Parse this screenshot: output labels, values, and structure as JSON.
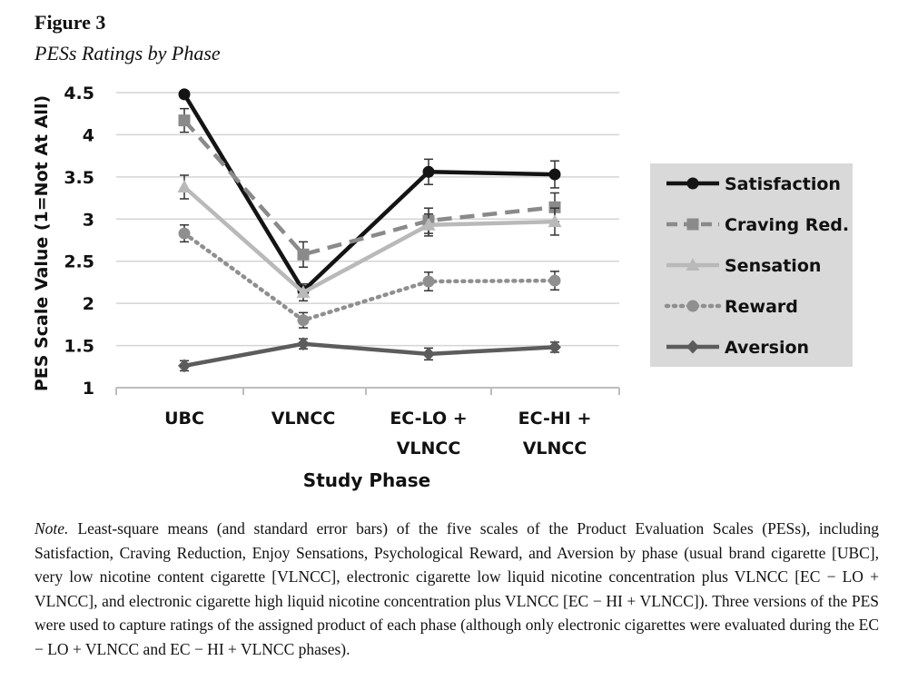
{
  "figure": {
    "label": "Figure 3",
    "subtitle": "PESs Ratings by Phase"
  },
  "chart_data": {
    "type": "line",
    "title": "PESs Ratings by Phase",
    "xlabel": "Study Phase",
    "ylabel": "PES Scale Value (1=Not At All)",
    "ylim": [
      1,
      4.5
    ],
    "yticks": [
      "1",
      "1.5",
      "2",
      "2.5",
      "3",
      "3.5",
      "4",
      "4.5"
    ],
    "grid": true,
    "legend_position": "right",
    "categories": [
      [
        "UBC"
      ],
      [
        "VLNCC"
      ],
      [
        "EC-LO +",
        "VLNCC"
      ],
      [
        "EC-HI +",
        "VLNCC"
      ]
    ],
    "series": [
      {
        "name": "Satisfaction",
        "values": [
          4.48,
          2.15,
          3.56,
          3.53
        ],
        "errors": [
          0.0,
          0.0,
          0.15,
          0.16
        ],
        "color": "#141414",
        "dash": "",
        "marker": "circle",
        "width": 4.5
      },
      {
        "name": "Craving Red.",
        "values": [
          4.17,
          2.58,
          2.98,
          3.14
        ],
        "errors": [
          0.14,
          0.15,
          0.15,
          0.17
        ],
        "color": "#8a8a8a",
        "dash": "16,9",
        "marker": "square",
        "width": 4.5
      },
      {
        "name": "Sensation",
        "values": [
          3.38,
          2.13,
          2.93,
          2.97
        ],
        "errors": [
          0.14,
          0.1,
          0.13,
          0.16
        ],
        "color": "#b9b9b9",
        "dash": "",
        "marker": "triangle",
        "width": 4.5
      },
      {
        "name": "Reward",
        "values": [
          2.83,
          1.8,
          2.26,
          2.27
        ],
        "errors": [
          0.1,
          0.09,
          0.11,
          0.11
        ],
        "color": "#8f8f8f",
        "dash": "2,6",
        "marker": "circle",
        "width": 4.5
      },
      {
        "name": "Aversion",
        "values": [
          1.26,
          1.52,
          1.4,
          1.48
        ],
        "errors": [
          0.06,
          0.06,
          0.07,
          0.06
        ],
        "color": "#5c5c5c",
        "dash": "",
        "marker": "diamond",
        "width": 4.5
      }
    ]
  },
  "note": {
    "label": "Note.",
    "text": "Least-square means (and standard error bars) of the five scales of the Product Evaluation Scales (PESs), including Satisfaction, Craving Reduction, Enjoy Sensations, Psychological Reward, and Aversion by phase (usual brand cigarette [UBC], very low nicotine content cigarette [VLNCC], electronic cigarette low liquid nicotine concentration plus VLNCC [EC − LO + VLNCC], and electronic cigarette high liquid nicotine concentration plus VLNCC [EC − HI + VLNCC]). Three versions of the PES were used to capture ratings of the assigned product of each phase (although only electronic cigarettes were evaluated during the EC − LO + VLNCC and EC − HI + VLNCC phases)."
  }
}
